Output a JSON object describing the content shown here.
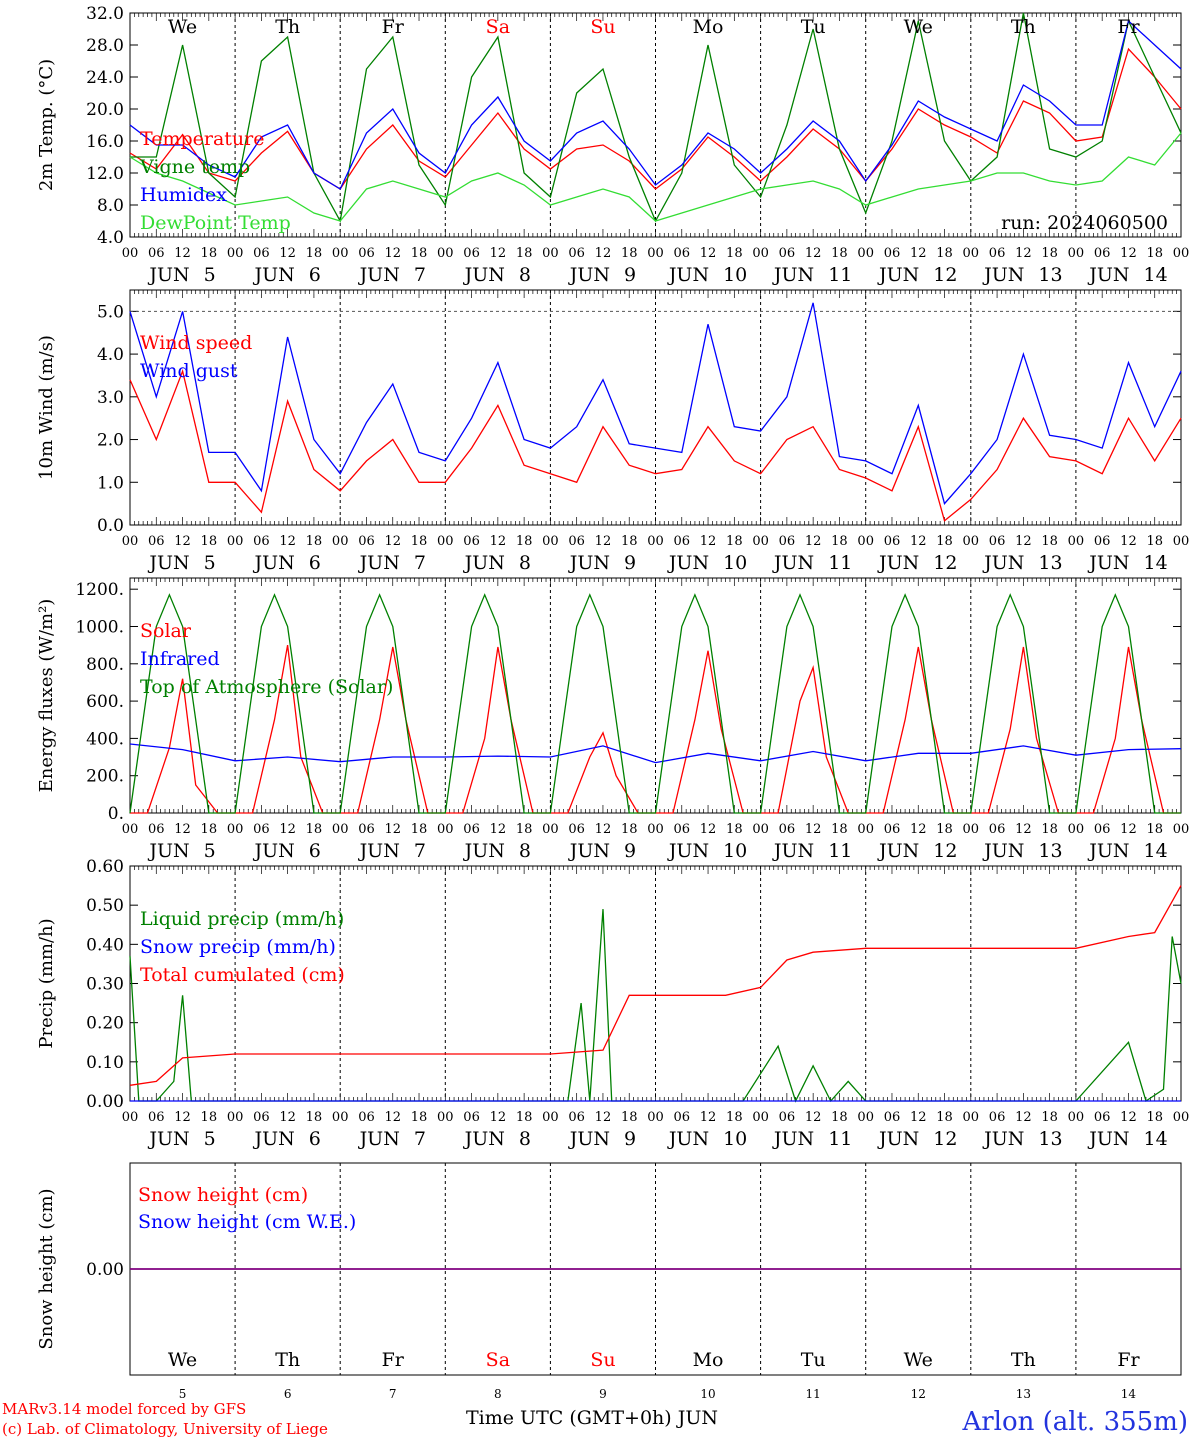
{
  "days": [
    {
      "abbr": "We",
      "date": "5",
      "weekend": false
    },
    {
      "abbr": "Th",
      "date": "6",
      "weekend": false
    },
    {
      "abbr": "Fr",
      "date": "7",
      "weekend": false
    },
    {
      "abbr": "Sa",
      "date": "8",
      "weekend": true
    },
    {
      "abbr": "Su",
      "date": "9",
      "weekend": true
    },
    {
      "abbr": "Mo",
      "date": "10",
      "weekend": false
    },
    {
      "abbr": "Tu",
      "date": "11",
      "weekend": false
    },
    {
      "abbr": "We",
      "date": "12",
      "weekend": false
    },
    {
      "abbr": "Th",
      "date": "13",
      "weekend": false
    },
    {
      "abbr": "Fr",
      "date": "14",
      "weekend": false
    }
  ],
  "month": "JUN",
  "hour_ticks": [
    "00",
    "06",
    "12",
    "18"
  ],
  "end_hour": "00",
  "run_label": "run: 2024060500",
  "footer": {
    "model_line1": "MARv3.14 model forced by GFS",
    "model_line2": "(c) Lab. of Climatology, University of Liege",
    "xlabel": "Time UTC (GMT+0h) JUN",
    "station": "Arlon (alt. 355m)"
  },
  "colors": {
    "red": "#ff0000",
    "green": "#008000",
    "blue": "#0000ff",
    "lime": "#33dd33",
    "purple": "#800080",
    "weekend": "#ff0000"
  },
  "chart_data": [
    {
      "type": "line",
      "ylabel": "2m Temp. (°C)",
      "ylim": [
        4,
        32
      ],
      "yticks": [
        "4.0",
        "8.0",
        "12.0",
        "16.0",
        "20.0",
        "24.0",
        "28.0",
        "32.0"
      ],
      "series": [
        {
          "name": "Temperature",
          "color": "red",
          "x": [
            0,
            6,
            12,
            18,
            24,
            30,
            36,
            42,
            48,
            54,
            60,
            66,
            72,
            78,
            84,
            90,
            96,
            102,
            108,
            114,
            120,
            126,
            132,
            138,
            144,
            150,
            156,
            162,
            168,
            174,
            180,
            186,
            192,
            198,
            204,
            210,
            216,
            222,
            228,
            234,
            240
          ],
          "values": [
            14.5,
            12.5,
            16.8,
            12,
            11,
            14.5,
            17.2,
            12,
            10,
            15,
            18,
            13.5,
            11.5,
            15.5,
            19.5,
            15,
            12.5,
            15,
            15.5,
            13.5,
            10,
            12.5,
            16.5,
            14,
            11,
            14,
            17.5,
            15,
            11,
            15,
            20,
            18,
            16.5,
            14.5,
            21,
            19.5,
            16,
            16.5,
            27.5,
            24,
            20
          ]
        },
        {
          "name": "Vigne temp",
          "color": "green",
          "x": [
            0,
            6,
            12,
            18,
            24,
            30,
            36,
            42,
            48,
            54,
            60,
            66,
            72,
            78,
            84,
            90,
            96,
            102,
            108,
            114,
            120,
            126,
            132,
            138,
            144,
            150,
            156,
            162,
            168,
            174,
            180,
            186,
            192,
            198,
            204,
            210,
            216,
            222,
            228,
            234,
            240
          ],
          "values": [
            14,
            14,
            28,
            12,
            9,
            26,
            29,
            12,
            6,
            25,
            29,
            13,
            8,
            24,
            29,
            12,
            9,
            22,
            25,
            14,
            6,
            12,
            28,
            13,
            9,
            18,
            30,
            15,
            7,
            16,
            31,
            16,
            11,
            14,
            32,
            15,
            14,
            16,
            31,
            24,
            17
          ]
        },
        {
          "name": "Humidex",
          "color": "blue",
          "x": [
            0,
            6,
            12,
            18,
            24,
            30,
            36,
            42,
            48,
            54,
            60,
            66,
            72,
            78,
            84,
            90,
            96,
            102,
            108,
            114,
            120,
            126,
            132,
            138,
            144,
            150,
            156,
            162,
            168,
            174,
            180,
            186,
            192,
            198,
            204,
            210,
            216,
            222,
            228,
            234,
            240
          ],
          "values": [
            18,
            15.5,
            15.5,
            13,
            11.5,
            16.5,
            18,
            12,
            10,
            17,
            20,
            14.5,
            12,
            18,
            21.5,
            16,
            13.5,
            17,
            18.5,
            15,
            10.5,
            13,
            17,
            15,
            12,
            15,
            18.5,
            16,
            11,
            15.5,
            21,
            19,
            17.5,
            16,
            23,
            21,
            18,
            18,
            31,
            28,
            25
          ]
        },
        {
          "name": "DewPoint Temp",
          "color": "lime",
          "x": [
            0,
            6,
            12,
            18,
            24,
            30,
            36,
            42,
            48,
            54,
            60,
            66,
            72,
            78,
            84,
            90,
            96,
            102,
            108,
            114,
            120,
            126,
            132,
            138,
            144,
            150,
            156,
            162,
            168,
            174,
            180,
            186,
            192,
            198,
            204,
            210,
            216,
            222,
            228,
            234,
            240
          ],
          "values": [
            14,
            12,
            11,
            9.5,
            8,
            8.5,
            9,
            7,
            6,
            10,
            11,
            10,
            9,
            11,
            12,
            10.5,
            8,
            9,
            10,
            9,
            6,
            7,
            8,
            9,
            10,
            10.5,
            11,
            10,
            8,
            9,
            10,
            10.5,
            11,
            12,
            12,
            11,
            10.5,
            11,
            14,
            13,
            17
          ]
        }
      ]
    },
    {
      "type": "line",
      "ylabel": "10m Wind (m/s)",
      "ylim": [
        0,
        5.5
      ],
      "yticks": [
        "0.0",
        "1.0",
        "2.0",
        "3.0",
        "4.0",
        "5.0"
      ],
      "series": [
        {
          "name": "Wind speed",
          "color": "red",
          "x": [
            0,
            6,
            12,
            18,
            24,
            30,
            36,
            42,
            48,
            54,
            60,
            66,
            72,
            78,
            84,
            90,
            96,
            102,
            108,
            114,
            120,
            126,
            132,
            138,
            144,
            150,
            156,
            162,
            168,
            174,
            180,
            186,
            192,
            198,
            204,
            210,
            216,
            222,
            228,
            234,
            240
          ],
          "values": [
            3.4,
            2.0,
            3.6,
            1.0,
            1.0,
            0.3,
            2.9,
            1.3,
            0.8,
            1.5,
            2.0,
            1.0,
            1.0,
            1.8,
            2.8,
            1.4,
            1.2,
            1.0,
            2.3,
            1.4,
            1.2,
            1.3,
            2.3,
            1.5,
            1.2,
            2.0,
            2.3,
            1.3,
            1.1,
            0.8,
            2.3,
            0.1,
            0.6,
            1.3,
            2.5,
            1.6,
            1.5,
            1.2,
            2.5,
            1.5,
            2.5
          ]
        },
        {
          "name": "Wind gust",
          "color": "blue",
          "x": [
            0,
            6,
            12,
            18,
            24,
            30,
            36,
            42,
            48,
            54,
            60,
            66,
            72,
            78,
            84,
            90,
            96,
            102,
            108,
            114,
            120,
            126,
            132,
            138,
            144,
            150,
            156,
            162,
            168,
            174,
            180,
            186,
            192,
            198,
            204,
            210,
            216,
            222,
            228,
            234,
            240
          ],
          "values": [
            5.0,
            3.0,
            5.0,
            1.7,
            1.7,
            0.8,
            4.4,
            2.0,
            1.2,
            2.4,
            3.3,
            1.7,
            1.5,
            2.5,
            3.8,
            2.0,
            1.8,
            2.3,
            3.4,
            1.9,
            1.8,
            1.7,
            4.7,
            2.3,
            2.2,
            3.0,
            5.2,
            1.6,
            1.5,
            1.2,
            2.8,
            0.5,
            1.2,
            2.0,
            4.0,
            2.1,
            2.0,
            1.8,
            3.8,
            2.3,
            3.6
          ]
        }
      ]
    },
    {
      "type": "line",
      "ylabel": "Energy fluxes (W/m²)",
      "ylim": [
        0,
        1260
      ],
      "yticks": [
        "0.",
        "200.",
        "400.",
        "600.",
        "800.",
        "1000.",
        "1200."
      ],
      "series": [
        {
          "name": "Solar",
          "color": "red",
          "x": [
            0,
            4,
            9,
            12,
            15,
            20,
            28,
            33,
            36,
            39,
            44,
            52,
            57,
            60,
            63,
            68,
            76,
            81,
            84,
            87,
            92,
            100,
            105,
            108,
            111,
            116,
            124,
            129,
            132,
            135,
            140,
            148,
            153,
            156,
            159,
            164,
            172,
            177,
            180,
            183,
            188,
            196,
            201,
            204,
            207,
            212,
            220,
            225,
            228,
            231,
            236,
            240
          ],
          "values": [
            0,
            0,
            350,
            720,
            150,
            0,
            0,
            500,
            900,
            300,
            0,
            0,
            500,
            890,
            500,
            0,
            0,
            400,
            890,
            500,
            0,
            0,
            300,
            430,
            200,
            0,
            0,
            500,
            870,
            450,
            0,
            0,
            600,
            780,
            300,
            0,
            0,
            500,
            890,
            500,
            0,
            0,
            450,
            890,
            400,
            0,
            0,
            400,
            890,
            500,
            0,
            0
          ]
        },
        {
          "name": "Infrared",
          "color": "blue",
          "x": [
            0,
            12,
            24,
            36,
            48,
            60,
            72,
            84,
            96,
            108,
            120,
            132,
            144,
            156,
            168,
            180,
            192,
            204,
            216,
            228,
            240
          ],
          "values": [
            370,
            340,
            280,
            300,
            275,
            300,
            300,
            305,
            300,
            360,
            270,
            320,
            280,
            330,
            280,
            320,
            320,
            360,
            310,
            340,
            345
          ]
        },
        {
          "name": "Top of Atmosphere (Solar)",
          "color": "green",
          "x": [
            0,
            3,
            6,
            9,
            12,
            15,
            18,
            21,
            24
          ],
          "values": [
            0,
            500,
            1000,
            1170,
            1000,
            500,
            0,
            0,
            0
          ],
          "repeat_daily": true
        }
      ]
    },
    {
      "type": "line",
      "ylabel": "Precip (mm/h)",
      "ylim": [
        0,
        0.6
      ],
      "yticks": [
        "0.00",
        "0.10",
        "0.20",
        "0.30",
        "0.40",
        "0.50",
        "0.60"
      ],
      "series": [
        {
          "name": "Liquid precip (mm/h)",
          "color": "green",
          "x": [
            0,
            2,
            6,
            10,
            12,
            14,
            18,
            22,
            100,
            103,
            105,
            108,
            110,
            140,
            148,
            152,
            156,
            160,
            164,
            168,
            216,
            228,
            232,
            236,
            238,
            240
          ],
          "values": [
            0.37,
            0,
            0,
            0.05,
            0.27,
            0,
            0,
            0,
            0,
            0.25,
            0,
            0.49,
            0,
            0,
            0.14,
            0,
            0.09,
            0,
            0.05,
            0,
            0,
            0.15,
            0,
            0.03,
            0.42,
            0.3
          ]
        },
        {
          "name": "Snow precip (mm/h)",
          "color": "blue",
          "x": [
            0,
            240
          ],
          "values": [
            0,
            0
          ]
        },
        {
          "name": "Total cumulated (cm)",
          "color": "red",
          "x": [
            0,
            6,
            12,
            24,
            60,
            96,
            108,
            114,
            136,
            144,
            150,
            156,
            168,
            216,
            228,
            234,
            240
          ],
          "values": [
            0.04,
            0.05,
            0.11,
            0.12,
            0.12,
            0.12,
            0.13,
            0.27,
            0.27,
            0.29,
            0.36,
            0.38,
            0.39,
            0.39,
            0.42,
            0.43,
            0.55
          ]
        }
      ]
    },
    {
      "type": "line",
      "ylabel": "Snow height (cm)",
      "ylim": [
        -1,
        1
      ],
      "yticks": [
        "0.00"
      ],
      "series": [
        {
          "name": "Snow height (cm)",
          "color": "red",
          "x": [
            0,
            240
          ],
          "values": [
            0,
            0
          ]
        },
        {
          "name": "Snow height (cm W.E.)",
          "color": "blue",
          "x": [
            0,
            240
          ],
          "values": [
            0,
            0
          ]
        }
      ]
    }
  ]
}
